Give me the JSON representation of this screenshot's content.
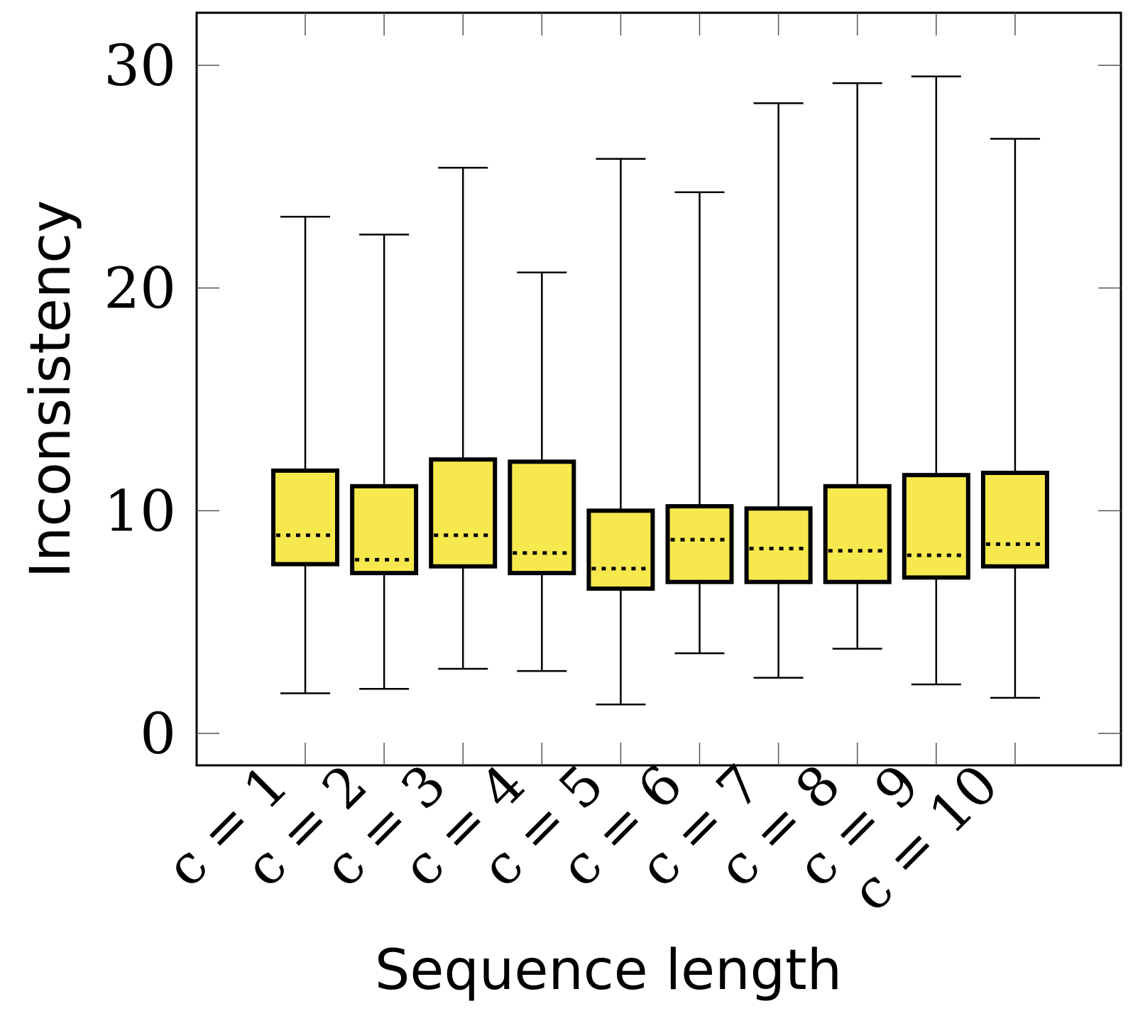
{
  "chart_data": {
    "type": "box",
    "title": "",
    "xlabel": "Sequence length",
    "ylabel": "Inconsistency",
    "ylim": [
      -1.5,
      32.3
    ],
    "yticks": [
      0,
      10,
      20,
      30
    ],
    "ytick_labels": [
      "0",
      "10",
      "20",
      "30"
    ],
    "grid": false,
    "colors": {
      "box_fill": "#f7e84e",
      "stroke": "#000000"
    },
    "categories": [
      "c = 1",
      "c = 2",
      "c = 3",
      "c = 4",
      "c = 5",
      "c = 6",
      "c = 7",
      "c = 8",
      "c = 9",
      "c = 10"
    ],
    "boxes": [
      {
        "label": "c = 1",
        "whisker_low": 1.8,
        "q1": 7.6,
        "median": 8.9,
        "q3": 11.8,
        "whisker_high": 23.2
      },
      {
        "label": "c = 2",
        "whisker_low": 2.0,
        "q1": 7.2,
        "median": 7.8,
        "q3": 11.1,
        "whisker_high": 22.4
      },
      {
        "label": "c = 3",
        "whisker_low": 2.9,
        "q1": 7.5,
        "median": 8.9,
        "q3": 12.3,
        "whisker_high": 25.4
      },
      {
        "label": "c = 4",
        "whisker_low": 2.8,
        "q1": 7.2,
        "median": 8.1,
        "q3": 12.2,
        "whisker_high": 20.7
      },
      {
        "label": "c = 5",
        "whisker_low": 1.3,
        "q1": 6.5,
        "median": 7.4,
        "q3": 10.0,
        "whisker_high": 25.8
      },
      {
        "label": "c = 6",
        "whisker_low": 3.6,
        "q1": 6.8,
        "median": 8.7,
        "q3": 10.2,
        "whisker_high": 24.3
      },
      {
        "label": "c = 7",
        "whisker_low": 2.5,
        "q1": 6.8,
        "median": 8.3,
        "q3": 10.1,
        "whisker_high": 28.3
      },
      {
        "label": "c = 8",
        "whisker_low": 3.8,
        "q1": 6.8,
        "median": 8.2,
        "q3": 11.1,
        "whisker_high": 29.2
      },
      {
        "label": "c = 9",
        "whisker_low": 2.2,
        "q1": 7.0,
        "median": 8.0,
        "q3": 11.6,
        "whisker_high": 29.5
      },
      {
        "label": "c = 10",
        "whisker_low": 1.6,
        "q1": 7.5,
        "median": 8.5,
        "q3": 11.7,
        "whisker_high": 26.7
      }
    ]
  }
}
